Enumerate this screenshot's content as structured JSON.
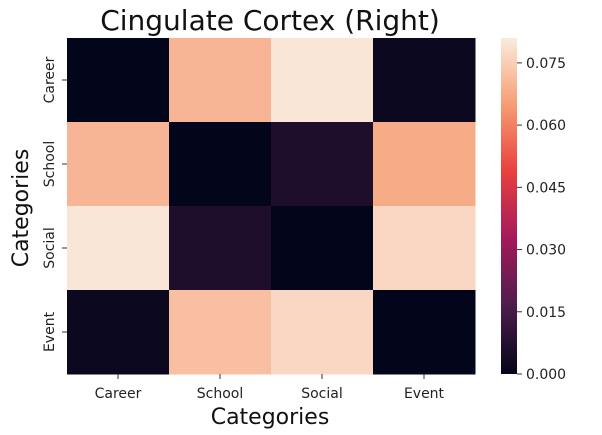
{
  "chart_data": {
    "type": "heatmap",
    "title": "Cingulate Cortex (Right)",
    "xlabel": "Categories",
    "ylabel": "Categories",
    "x_categories": [
      "Career",
      "School",
      "Social",
      "Event"
    ],
    "y_categories": [
      "Career",
      "School",
      "Social",
      "Event"
    ],
    "values": [
      [
        0.0,
        0.07,
        0.08,
        0.002
      ],
      [
        0.07,
        0.0,
        0.006,
        0.068
      ],
      [
        0.08,
        0.006,
        0.0,
        0.077
      ],
      [
        0.002,
        0.072,
        0.077,
        0.0
      ]
    ],
    "colorbar": {
      "range": [
        0.0,
        0.081
      ],
      "ticks": [
        "0.000",
        "0.015",
        "0.030",
        "0.045",
        "0.060",
        "0.075"
      ],
      "colormap": "rocket",
      "colors": [
        "#03051a",
        "#4c1d4b",
        "#a11a5b",
        "#e83f3f",
        "#f69c73",
        "#faebdd"
      ]
    },
    "grid": false
  }
}
